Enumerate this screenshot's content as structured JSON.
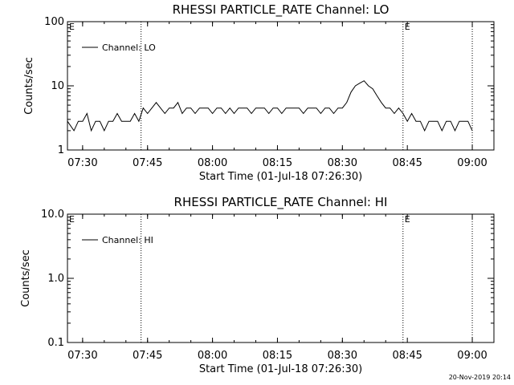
{
  "footer": {
    "timestamp": "20-Nov-2019 20:14"
  },
  "chart_data": [
    {
      "type": "line",
      "title": "RHESSI PARTICLE_RATE Channel: LO",
      "xlabel": "Start Time (01-Jul-18 07:26:30)",
      "ylabel": "Counts/sec",
      "yscale": "log",
      "ylim": [
        1,
        100
      ],
      "yticks": [
        "1",
        "10",
        "100"
      ],
      "xlim": [
        "07:26:30",
        "09:05:00"
      ],
      "xticks": [
        "07:30",
        "07:45",
        "08:00",
        "08:15",
        "08:30",
        "08:45",
        "09:00"
      ],
      "legend": "top-left",
      "grid": false,
      "annotations": [
        {
          "type": "vline",
          "x": "07:43:30",
          "style": "dotted"
        },
        {
          "type": "vline",
          "x": "08:44:00",
          "style": "dotted",
          "label": "E"
        },
        {
          "type": "vline",
          "x": "09:00:00",
          "style": "dotted"
        },
        {
          "type": "text",
          "x": "07:26:30",
          "label": "E"
        }
      ],
      "series": [
        {
          "name": "Channel: LO",
          "color": "#000000",
          "x": [
            "07:26:30",
            "07:28:00",
            "07:29:00",
            "07:30:00",
            "07:31:00",
            "07:32:00",
            "07:33:00",
            "07:34:00",
            "07:35:00",
            "07:36:00",
            "07:37:00",
            "07:38:00",
            "07:39:00",
            "07:40:00",
            "07:41:00",
            "07:42:00",
            "07:43:00",
            "07:44:00",
            "07:45:00",
            "07:46:00",
            "07:47:00",
            "07:48:00",
            "07:49:00",
            "07:50:00",
            "07:51:00",
            "07:52:00",
            "07:53:00",
            "07:54:00",
            "07:55:00",
            "07:56:00",
            "07:57:00",
            "07:58:00",
            "07:59:00",
            "08:00:00",
            "08:01:00",
            "08:02:00",
            "08:03:00",
            "08:04:00",
            "08:05:00",
            "08:06:00",
            "08:07:00",
            "08:08:00",
            "08:09:00",
            "08:10:00",
            "08:11:00",
            "08:12:00",
            "08:13:00",
            "08:14:00",
            "08:15:00",
            "08:16:00",
            "08:17:00",
            "08:18:00",
            "08:19:00",
            "08:20:00",
            "08:21:00",
            "08:22:00",
            "08:23:00",
            "08:24:00",
            "08:25:00",
            "08:26:00",
            "08:27:00",
            "08:28:00",
            "08:29:00",
            "08:30:00",
            "08:31:00",
            "08:32:00",
            "08:33:00",
            "08:34:00",
            "08:35:00",
            "08:36:00",
            "08:37:00",
            "08:38:00",
            "08:39:00",
            "08:40:00",
            "08:41:00",
            "08:42:00",
            "08:43:00",
            "08:44:00",
            "08:45:00",
            "08:46:00",
            "08:47:00",
            "08:48:00",
            "08:49:00",
            "08:50:00",
            "08:51:00",
            "08:52:00",
            "08:53:00",
            "08:54:00",
            "08:55:00",
            "08:56:00",
            "08:57:00",
            "08:58:00",
            "08:59:00",
            "09:00:00"
          ],
          "values": [
            2.8,
            2,
            2.8,
            2.8,
            3.7,
            2,
            2.8,
            2.8,
            2,
            2.8,
            2.8,
            3.7,
            2.8,
            2.8,
            2.8,
            3.7,
            2.8,
            4.5,
            3.7,
            4.5,
            5.5,
            4.5,
            3.7,
            4.5,
            4.5,
            5.5,
            3.7,
            4.5,
            4.5,
            3.7,
            4.5,
            4.5,
            4.5,
            3.7,
            4.5,
            4.5,
            3.7,
            4.5,
            3.7,
            4.5,
            4.5,
            4.5,
            3.7,
            4.5,
            4.5,
            4.5,
            3.7,
            4.5,
            4.5,
            3.7,
            4.5,
            4.5,
            4.5,
            4.5,
            3.7,
            4.5,
            4.5,
            4.5,
            3.7,
            4.5,
            4.5,
            3.7,
            4.5,
            4.5,
            5.5,
            8,
            10,
            11,
            12,
            10,
            9,
            7,
            5.5,
            4.5,
            4.5,
            3.7,
            4.5,
            3.7,
            2.8,
            3.7,
            2.8,
            2.8,
            2,
            2.8,
            2.8,
            2.8,
            2,
            2.8,
            2.8,
            2,
            2.8,
            2.8,
            2.8,
            2
          ]
        }
      ]
    },
    {
      "type": "line",
      "title": "RHESSI PARTICLE_RATE Channel: HI",
      "xlabel": "Start Time (01-Jul-18 07:26:30)",
      "ylabel": "Counts/sec",
      "yscale": "log",
      "ylim": [
        0.1,
        10
      ],
      "yticks": [
        "0.1",
        "1.0",
        "10.0"
      ],
      "xlim": [
        "07:26:30",
        "09:05:00"
      ],
      "xticks": [
        "07:30",
        "07:45",
        "08:00",
        "08:15",
        "08:30",
        "08:45",
        "09:00"
      ],
      "legend": "top-left",
      "grid": false,
      "annotations": [
        {
          "type": "vline",
          "x": "07:43:30",
          "style": "dotted"
        },
        {
          "type": "vline",
          "x": "08:44:00",
          "style": "dotted",
          "label": "E"
        },
        {
          "type": "vline",
          "x": "09:00:00",
          "style": "dotted"
        },
        {
          "type": "text",
          "x": "07:26:30",
          "label": "E"
        }
      ],
      "series": [
        {
          "name": "Channel: HI",
          "color": "#000000",
          "x": [],
          "values": []
        }
      ]
    }
  ]
}
